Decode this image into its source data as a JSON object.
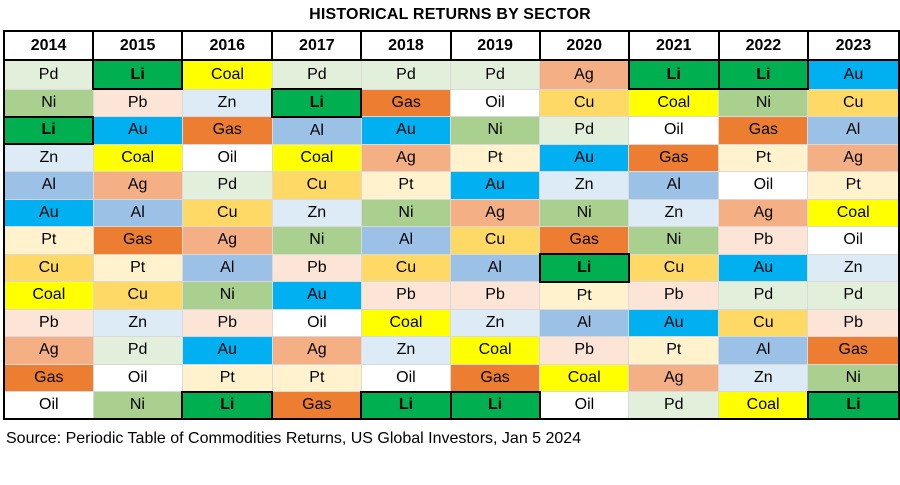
{
  "title": "HISTORICAL RETURNS BY SECTOR",
  "years": [
    "2014",
    "2015",
    "2016",
    "2017",
    "2018",
    "2019",
    "2020",
    "2021",
    "2022",
    "2023"
  ],
  "columns": [
    [
      "Pd",
      "Ni",
      "Li",
      "Zn",
      "Al",
      "Au",
      "Pt",
      "Cu",
      "Coal",
      "Pb",
      "Ag",
      "Gas",
      "Oil"
    ],
    [
      "Li",
      "Pb",
      "Au",
      "Coal",
      "Ag",
      "Al",
      "Gas",
      "Pt",
      "Cu",
      "Zn",
      "Pd",
      "Oil",
      "Ni"
    ],
    [
      "Coal",
      "Zn",
      "Gas",
      "Oil",
      "Pd",
      "Cu",
      "Ag",
      "Al",
      "Ni",
      "Pb",
      "Au",
      "Pt",
      "Li"
    ],
    [
      "Pd",
      "Li",
      "Al",
      "Coal",
      "Cu",
      "Zn",
      "Ni",
      "Pb",
      "Au",
      "Oil",
      "Ag",
      "Pt",
      "Gas"
    ],
    [
      "Pd",
      "Gas",
      "Au",
      "Ag",
      "Pt",
      "Ni",
      "Al",
      "Cu",
      "Pb",
      "Coal",
      "Zn",
      "Oil",
      "Li"
    ],
    [
      "Pd",
      "Oil",
      "Ni",
      "Pt",
      "Au",
      "Ag",
      "Cu",
      "Al",
      "Pb",
      "Zn",
      "Coal",
      "Gas",
      "Li"
    ],
    [
      "Ag",
      "Cu",
      "Pd",
      "Au",
      "Zn",
      "Ni",
      "Gas",
      "Li",
      "Pt",
      "Al",
      "Pb",
      "Coal",
      "Oil"
    ],
    [
      "Li",
      "Coal",
      "Oil",
      "Gas",
      "Al",
      "Zn",
      "Ni",
      "Cu",
      "Pb",
      "Au",
      "Pt",
      "Ag",
      "Pd"
    ],
    [
      "Li",
      "Ni",
      "Gas",
      "Pt",
      "Oil",
      "Ag",
      "Pb",
      "Au",
      "Pd",
      "Cu",
      "Al",
      "Zn",
      "Coal"
    ],
    [
      "Au",
      "Cu",
      "Al",
      "Ag",
      "Pt",
      "Coal",
      "Oil",
      "Zn",
      "Pd",
      "Pb",
      "Gas",
      "Ni",
      "Li"
    ]
  ],
  "colors": {
    "Li": "#00b050",
    "Coal": "#ffff00",
    "Pd": "#e2efda",
    "Ni": "#a9d08e",
    "Gas": "#ed7d31",
    "Oil": "#ffffff",
    "Pb": "#fce4d6",
    "Zn": "#ddebf7",
    "Au": "#00b0f0",
    "Al": "#9bc2e6",
    "Ag": "#f4b084",
    "Pt": "#fff2cc",
    "Cu": "#ffd966"
  },
  "source": "Source: Periodic Table of Commodities Returns, US Global Investors, Jan 5 2024"
}
